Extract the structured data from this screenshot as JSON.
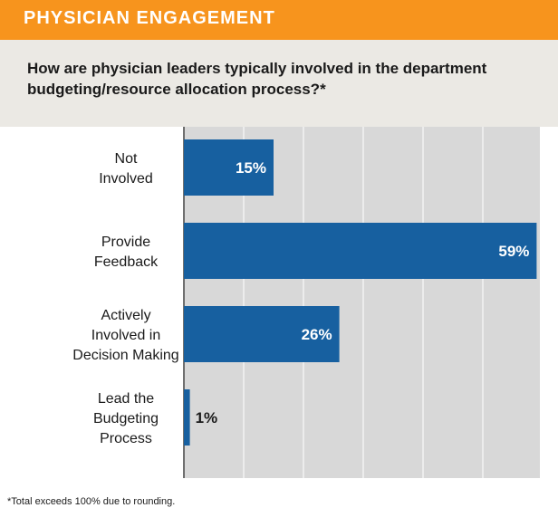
{
  "header": {
    "title": "PHYSICIAN ENGAGEMENT"
  },
  "question": "How are physician leaders typically involved in the department budgeting/resource allocation process?*",
  "footnote": "*Total exceeds 100% due to rounding.",
  "colors": {
    "header_band": "#f7941d",
    "bar": "#1760a0",
    "plot_bg": "#d8d8d8",
    "gridline": "#ffffff",
    "axis": "#444444",
    "panel_bg": "#ebe9e4"
  },
  "chart_data": {
    "type": "bar",
    "orientation": "horizontal",
    "categories": [
      [
        "Not",
        "Involved"
      ],
      [
        "Provide",
        "Feedback"
      ],
      [
        "Actively",
        "Involved in",
        "Decision Making"
      ],
      [
        "Lead the",
        "Budgeting",
        "Process"
      ]
    ],
    "values": [
      15,
      59,
      26,
      1
    ],
    "data_labels": [
      "15%",
      "59%",
      "26%",
      "1%"
    ],
    "xlim": [
      0,
      60
    ],
    "gridline_step": 10,
    "grid": true,
    "legend": "none"
  }
}
